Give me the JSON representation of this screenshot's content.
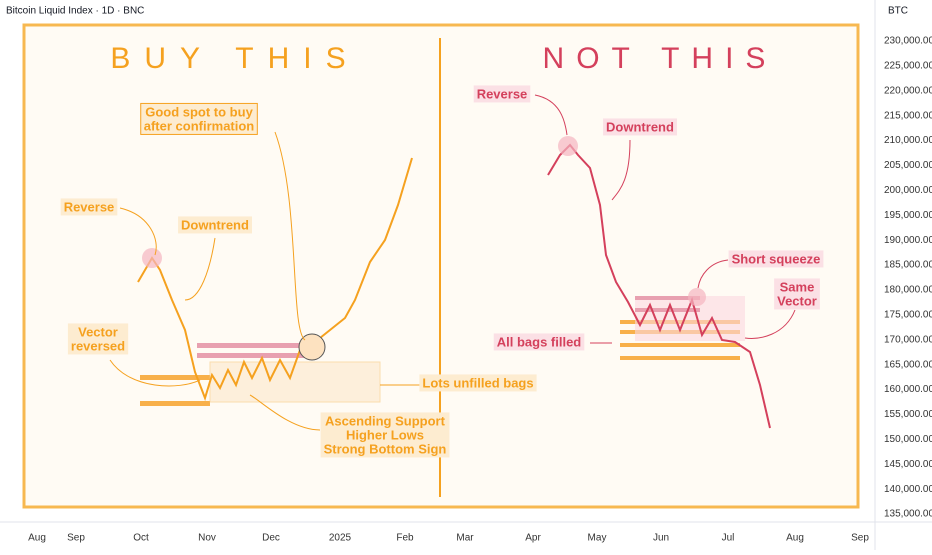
{
  "header": {
    "symbol": "Bitcoin Liquid Index · 1D · BNC",
    "currency": "BTC"
  },
  "left_panel": {
    "title": "BUY THIS",
    "annotations": {
      "good_spot": [
        "Good spot to buy",
        "after confirmation"
      ],
      "reverse": "Reverse",
      "downtrend": "Downtrend",
      "vector": [
        "Vector",
        "reversed"
      ],
      "unfilled": "Lots unfilled bags",
      "support": [
        "Ascending Support",
        "Higher Lows",
        "Strong Bottom Sign"
      ]
    }
  },
  "right_panel": {
    "title": "NOT THIS",
    "annotations": {
      "reverse": "Reverse",
      "downtrend": "Downtrend",
      "squeeze": "Short squeeze",
      "same_vector": [
        "Same",
        "Vector"
      ],
      "bags_filled": "All bags filled"
    }
  },
  "y_axis": {
    "labels": [
      "230,000.00",
      "225,000.00",
      "220,000.00",
      "215,000.00",
      "210,000.00",
      "205,000.00",
      "200,000.00",
      "195,000.00",
      "190,000.00",
      "185,000.00",
      "180,000.00",
      "175,000.00",
      "170,000.00",
      "165,000.00",
      "160,000.00",
      "155,000.00",
      "150,000.00",
      "145,000.00",
      "140,000.00",
      "135,000.00"
    ]
  },
  "x_axis": {
    "labels": [
      "Aug",
      "Sep",
      "Oct",
      "Nov",
      "Dec",
      "2025",
      "Feb",
      "Mar",
      "Apr",
      "May",
      "Jun",
      "Jul",
      "Aug",
      "Sep"
    ]
  }
}
